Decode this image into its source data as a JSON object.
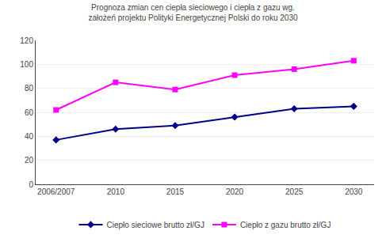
{
  "chart_data": {
    "type": "line",
    "title": "Prognoza zmian cen ciepła sieciowego i ciepła z gazu wg.\nzałożeń projektu Polityki Energetycznej Polski do roku 2030",
    "categories": [
      "2006/2007",
      "2010",
      "2015",
      "2020",
      "2025",
      "2030"
    ],
    "series": [
      {
        "name": "Ciepło sieciowe brutto zł/GJ",
        "color": "#00008B",
        "marker": "diamond",
        "values": [
          37,
          46,
          49,
          56,
          63,
          65
        ]
      },
      {
        "name": "Ciepło z gazu brutto zł/GJ",
        "color": "#FF00FF",
        "marker": "square",
        "values": [
          62,
          85,
          79,
          91,
          96,
          103
        ]
      }
    ],
    "ylim": [
      0,
      120
    ],
    "yticks": [
      0,
      20,
      40,
      60,
      80,
      100,
      120
    ],
    "grid": true,
    "legend": "bottom"
  }
}
